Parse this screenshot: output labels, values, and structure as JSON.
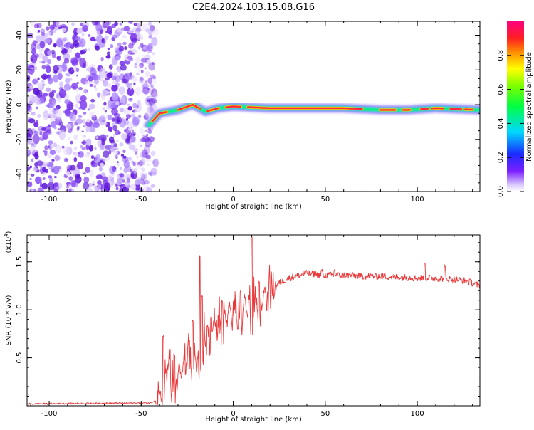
{
  "title": "C2E4.2024.103.15.08.G16",
  "colors": {
    "snr_line": "#e8383a",
    "axis": "#000000"
  },
  "chart_data": [
    {
      "type": "heatmap",
      "xlabel": "Height of straight line (km)",
      "ylabel": "Frequency (Hz)",
      "xlim": [
        -112,
        134
      ],
      "ylim": [
        -50,
        48
      ],
      "xticks": [
        -100,
        -50,
        0,
        50,
        100
      ],
      "yticks": [
        -40,
        -20,
        0,
        20,
        40
      ],
      "colorbar": {
        "label": "Normalized spectral amplitude",
        "range": [
          0,
          1
        ],
        "ticks": [
          "0.0",
          "0.2",
          "0.4",
          "0.6",
          "0.8"
        ],
        "tick_values": [
          0.0,
          0.2,
          0.4,
          0.6,
          0.8
        ],
        "colormap": "rainbow-white-purple-blue-cyan-green-yellow-red-magenta"
      },
      "features": {
        "noise_region_x": [
          -112,
          -46
        ],
        "ridge": [
          [
            -46,
            -12
          ],
          [
            -40,
            -5
          ],
          [
            -30,
            -3
          ],
          [
            -22,
            0
          ],
          [
            -15,
            -4
          ],
          [
            -8,
            -2
          ],
          [
            0,
            -1
          ],
          [
            20,
            -2
          ],
          [
            60,
            -2
          ],
          [
            80,
            -3
          ],
          [
            95,
            -3
          ],
          [
            110,
            -2
          ],
          [
            134,
            -3
          ]
        ]
      }
    },
    {
      "type": "line",
      "xlabel": "Height of straight line (km)",
      "ylabel": "SNR (10 * v/v)",
      "yscale_label": "(x10^4)",
      "xlim": [
        -112,
        134
      ],
      "ylim": [
        0,
        1.78
      ],
      "xticks": [
        -100,
        -50,
        0,
        50,
        100
      ],
      "yticks": [
        0.5,
        1.0,
        1.5
      ],
      "ytick_labels": [
        "0.5",
        "1.0",
        "1.5"
      ],
      "series": [
        {
          "color": "#e8383a",
          "envelope": [
            [
              -112,
              0.02
            ],
            [
              -45,
              0.03
            ],
            [
              -40,
              0.08
            ],
            [
              -37,
              0.4
            ],
            [
              -30,
              0.3
            ],
            [
              -25,
              0.45
            ],
            [
              -20,
              0.5
            ],
            [
              -15,
              0.75
            ],
            [
              -10,
              0.85
            ],
            [
              -5,
              0.95
            ],
            [
              0,
              1.0
            ],
            [
              5,
              1.03
            ],
            [
              10,
              1.05
            ],
            [
              15,
              1.12
            ],
            [
              20,
              1.2
            ],
            [
              25,
              1.28
            ],
            [
              30,
              1.33
            ],
            [
              40,
              1.38
            ],
            [
              50,
              1.36
            ],
            [
              60,
              1.36
            ],
            [
              70,
              1.35
            ],
            [
              80,
              1.35
            ],
            [
              90,
              1.34
            ],
            [
              100,
              1.33
            ],
            [
              110,
              1.33
            ],
            [
              120,
              1.32
            ],
            [
              127,
              1.3
            ],
            [
              134,
              1.25
            ]
          ],
          "spikes": [
            [
              -38,
              0.75
            ],
            [
              -32,
              0.55
            ],
            [
              -22,
              0.9
            ],
            [
              -18,
              1.58
            ],
            [
              -17,
              1.15
            ],
            [
              -12,
              0.95
            ],
            [
              -6,
              1.1
            ],
            [
              4,
              1.2
            ],
            [
              10,
              1.78
            ],
            [
              14,
              1.3
            ],
            [
              48,
              1.43
            ],
            [
              55,
              1.43
            ],
            [
              104,
              1.49
            ],
            [
              115,
              1.48
            ]
          ]
        }
      ]
    }
  ]
}
